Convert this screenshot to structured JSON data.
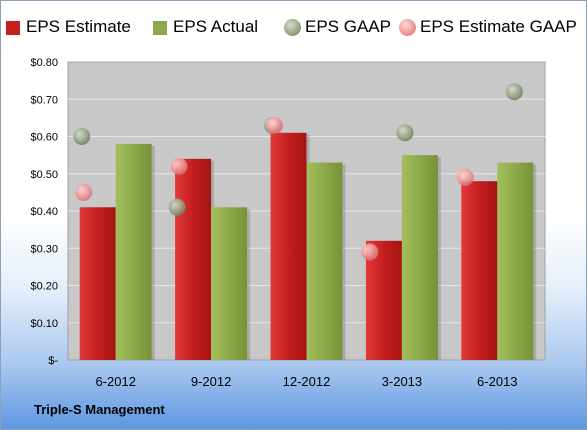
{
  "footer": {
    "label": "Triple-S Management"
  },
  "colors": {
    "estimate": "#c41e1e",
    "actual": "#8caa49",
    "gaap": "#8c9c7c",
    "estimate_gaap": "#e88080",
    "plot_bg": "#c8c8c8"
  },
  "chart_data": {
    "type": "bar",
    "categories": [
      "6-2012",
      "9-2012",
      "12-2012",
      "3-2013",
      "6-2013"
    ],
    "ylim": [
      0,
      0.8
    ],
    "yticks": [
      {
        "value": 0.8,
        "label": "$0.80"
      },
      {
        "value": 0.7,
        "label": "$0.70"
      },
      {
        "value": 0.6,
        "label": "$0.60"
      },
      {
        "value": 0.5,
        "label": "$0.50"
      },
      {
        "value": 0.4,
        "label": "$0.40"
      },
      {
        "value": 0.3,
        "label": "$0.30"
      },
      {
        "value": 0.2,
        "label": "$0.20"
      },
      {
        "value": 0.1,
        "label": "$0.10"
      },
      {
        "value": 0,
        "label": "$-"
      }
    ],
    "grid": true,
    "legend_position": "top",
    "series": [
      {
        "name": "EPS Estimate",
        "kind": "bar",
        "values": [
          0.41,
          0.54,
          0.61,
          0.32,
          0.48
        ]
      },
      {
        "name": "EPS Actual",
        "kind": "bar",
        "values": [
          0.58,
          0.41,
          0.53,
          0.55,
          0.53
        ]
      },
      {
        "name": "EPS GAAP",
        "kind": "marker",
        "values": [
          0.6,
          0.41,
          0.63,
          0.61,
          0.72
        ]
      },
      {
        "name": "EPS Estimate GAAP",
        "kind": "marker",
        "values": [
          0.45,
          0.52,
          0.63,
          0.29,
          0.49
        ]
      }
    ]
  }
}
